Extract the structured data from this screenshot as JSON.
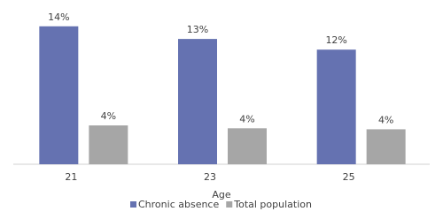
{
  "chart_data": {
    "type": "bar",
    "x_label": "Age",
    "categories": [
      "21",
      "23",
      "25"
    ],
    "series": [
      {
        "name": "Chronic absence",
        "color": "#6572b1",
        "values": [
          14.2,
          12.9,
          11.8
        ],
        "value_labels": [
          "14%",
          "13%",
          "12%"
        ]
      },
      {
        "name": "Total population",
        "color": "#a6a6a6",
        "values": [
          4.0,
          3.7,
          3.6
        ],
        "value_labels": [
          "4%",
          "4%",
          "4%"
        ]
      }
    ],
    "legend": "bottom"
  }
}
